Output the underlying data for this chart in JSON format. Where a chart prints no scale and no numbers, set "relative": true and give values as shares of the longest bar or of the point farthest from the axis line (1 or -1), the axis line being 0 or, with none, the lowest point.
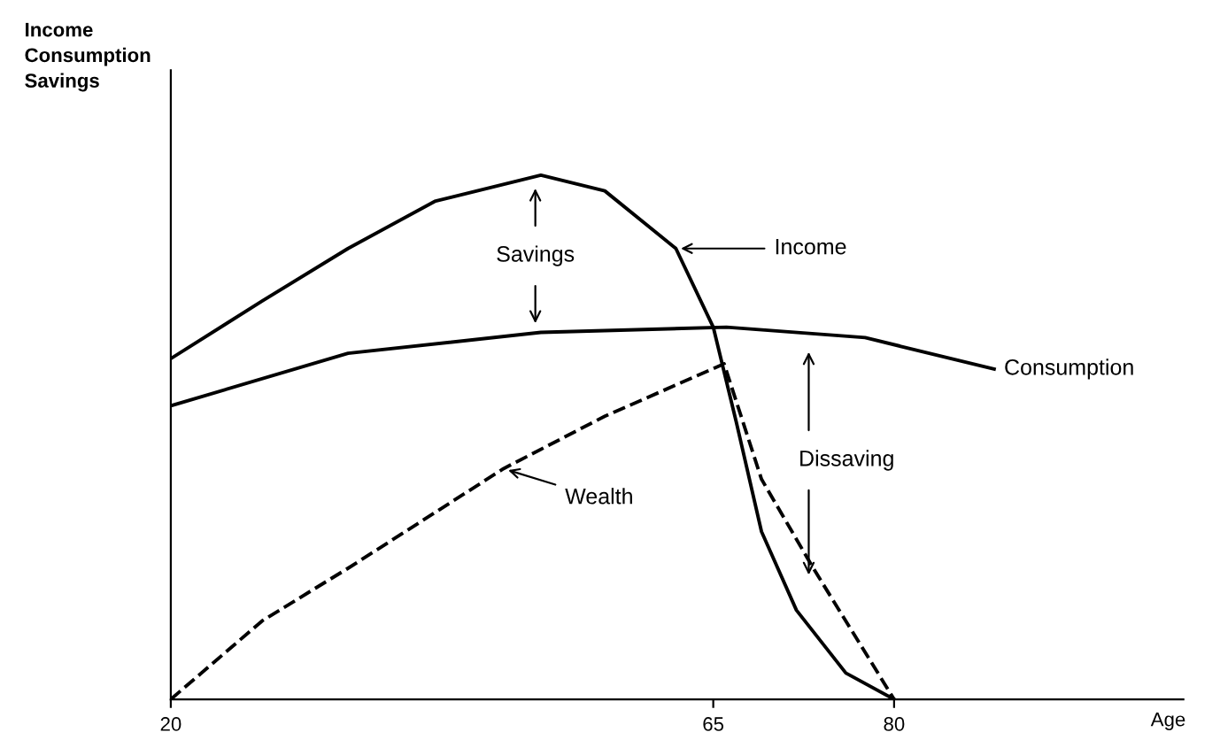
{
  "chart_data": {
    "type": "line",
    "relative": true,
    "xlabel": "Age",
    "ylabel": "Income\nConsumption\nSavings",
    "xlim": [
      20,
      104
    ],
    "xticks": [
      20,
      65,
      80
    ],
    "grid": false,
    "marker": "none",
    "series": [
      {
        "name": "Income",
        "color": "#000000",
        "line_style": "solid",
        "x": [
          20,
          27.6,
          34.7,
          41.9,
          50.7,
          56,
          61.9,
          65,
          66.9,
          69,
          71.9,
          76,
          80
        ],
        "values": [
          0.65,
          0.76,
          0.86,
          0.95,
          1.0,
          0.97,
          0.86,
          0.71,
          0.53,
          0.32,
          0.17,
          0.05,
          0
        ]
      },
      {
        "name": "Consumption",
        "color": "#000000",
        "line_style": "solid",
        "x": [
          20,
          34.7,
          50.7,
          66.1,
          77.6,
          88.3
        ],
        "values": [
          0.56,
          0.66,
          0.7,
          0.71,
          0.69,
          0.63
        ]
      },
      {
        "name": "Wealth",
        "color": "#000000",
        "line_style": "dashed",
        "x": [
          20,
          27.6,
          34.7,
          47.6,
          56,
          65.9,
          69,
          73.3,
          80
        ],
        "values": [
          0,
          0.15,
          0.25,
          0.44,
          0.54,
          0.64,
          0.42,
          0.25,
          0
        ]
      }
    ],
    "annotations": [
      "Savings",
      "Dissaving"
    ]
  }
}
